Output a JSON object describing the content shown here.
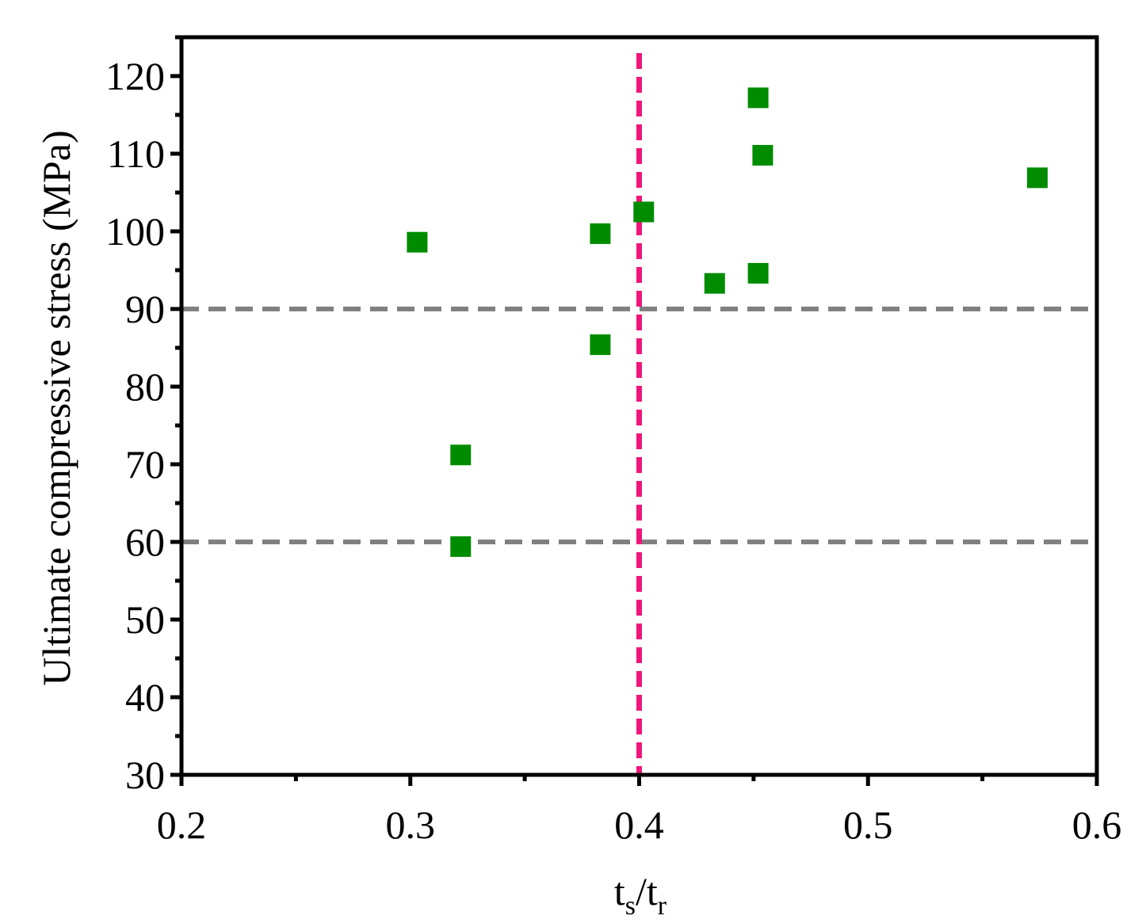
{
  "chart_data": {
    "type": "scatter",
    "ylabel": "Ultimate compressive stress (MPa)",
    "xlabel_parts": [
      "t",
      "s",
      "/t",
      "r"
    ],
    "series": [
      {
        "color": "#008c00",
        "x": [
          0.303,
          0.322,
          0.322,
          0.383,
          0.383,
          0.402,
          0.433,
          0.452,
          0.454,
          0.452,
          0.574
        ],
        "values": [
          98.6,
          71.2,
          59.4,
          99.7,
          85.4,
          102.5,
          93.3,
          117.2,
          109.8,
          94.6,
          106.9
        ]
      }
    ],
    "xlim": [
      0.2,
      0.6
    ],
    "ylim": [
      30,
      125
    ],
    "xticks": [
      0.2,
      0.3,
      0.4,
      0.5,
      0.6
    ],
    "yticks": [
      30,
      40,
      50,
      60,
      70,
      80,
      90,
      100,
      110,
      120
    ],
    "xminor": [
      0.25,
      0.35,
      0.45,
      0.55
    ],
    "yminor": [
      35,
      45,
      55,
      65,
      75,
      85,
      95,
      105,
      115,
      125
    ],
    "hlines": [
      {
        "value": 90,
        "color": "#808080"
      },
      {
        "value": 60,
        "color": "#808080"
      }
    ],
    "vlines": [
      {
        "value": 0.4,
        "color": "#f0157a"
      }
    ]
  }
}
